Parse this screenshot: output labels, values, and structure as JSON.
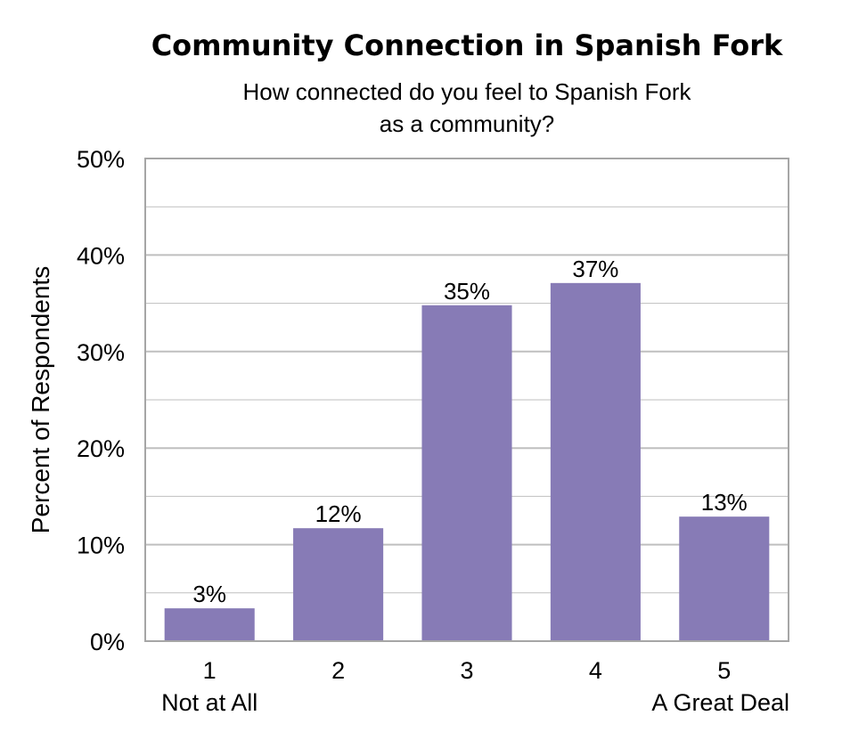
{
  "chart_data": {
    "type": "bar",
    "title": "Community Connection in Spanish Fork",
    "subtitle_lines": [
      "How connected do you feel to Spanish Fork",
      "as a community?"
    ],
    "xlabel": "",
    "ylabel": "Percent of Respondents",
    "categories": [
      "1",
      "2",
      "3",
      "4",
      "5"
    ],
    "category_sublabels": [
      "Not at All",
      "",
      "",
      "",
      "A Great Deal"
    ],
    "values": [
      3.4,
      11.7,
      34.8,
      37.1,
      12.9
    ],
    "data_labels": [
      "3%",
      "12%",
      "35%",
      "37%",
      "13%"
    ],
    "ylim": [
      0,
      50
    ],
    "yticks": [
      0,
      10,
      20,
      30,
      40,
      50
    ],
    "ytick_labels": [
      "0%",
      "10%",
      "20%",
      "30%",
      "40%",
      "50%"
    ],
    "grid": true,
    "bar_color": "#877bb6",
    "grid_color": "#bfbfbf",
    "legend": "none"
  }
}
